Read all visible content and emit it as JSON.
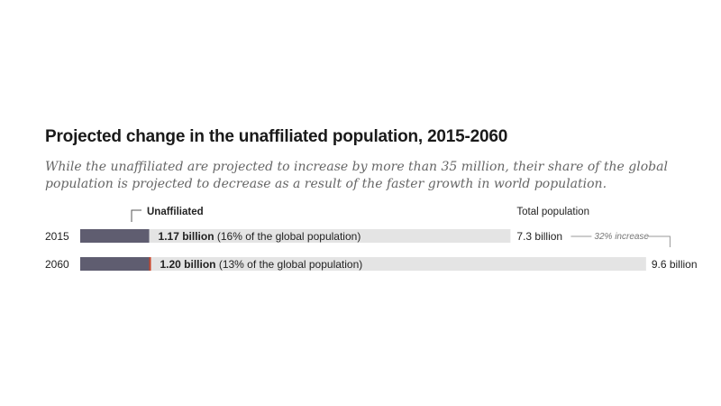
{
  "title": "Projected change in the unaffiliated population, 2015-2060",
  "subtitle": "While the unaffiliated are projected to increase by more than 35 million, their share of the global population is projected to decrease as a result of the faster growth in world population.",
  "colors": {
    "unaffiliated": "#5f5d70",
    "growth": "#c8452b",
    "total": "#e4e4e4"
  },
  "chart_data": {
    "type": "bar",
    "unit": "billion",
    "series": [
      {
        "name": "Unaffiliated",
        "values": [
          1.17,
          1.2
        ]
      },
      {
        "name": "Total population",
        "values": [
          7.3,
          9.6
        ]
      }
    ],
    "rows": [
      {
        "year": "2015",
        "unaffiliated": 1.17,
        "total": 7.3,
        "value_bold": "1.17 billion",
        "value_rest": " (16% of the global population)",
        "total_label": "7.3 billion"
      },
      {
        "year": "2060",
        "unaffiliated": 1.2,
        "total": 9.6,
        "value_bold": "1.20 billion",
        "value_rest": " (13% of the global population)",
        "total_label": "9.6 billion"
      }
    ],
    "annotations": {
      "unaffiliated_label": "Unaffiliated",
      "total_label": "Total population",
      "increase_label": "32% increase"
    }
  }
}
